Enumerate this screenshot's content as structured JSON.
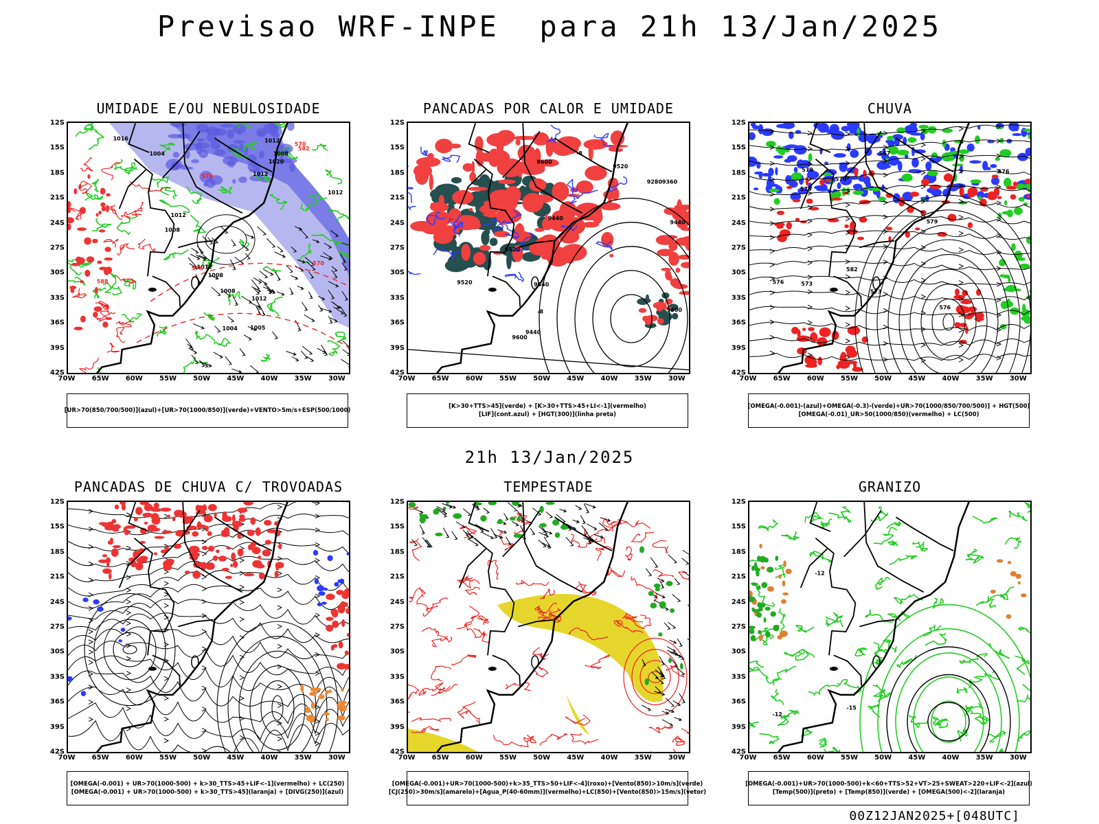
{
  "main_title": "Previsao WRF-INPE  para 21h 13/Jan/2025",
  "mid_title": "21h 13/Jan/2025",
  "footer": "00Z12JAN2025+[048UTC]",
  "lat_ticks": [
    "12S",
    "15S",
    "18S",
    "21S",
    "24S",
    "27S",
    "30S",
    "33S",
    "36S",
    "39S",
    "42S"
  ],
  "lon_ticks": [
    "70W",
    "65W",
    "60W",
    "55W",
    "50W",
    "45W",
    "40W",
    "35W",
    "30W"
  ],
  "panels": [
    {
      "title": "UMIDADE E/OU NEBULOSIDADE",
      "legend": [
        "[UR>70(850/700/500)](azul)+[UR>70(1000/850)](verde)+VENTO>5m/s+ESP(500/1000)"
      ],
      "labels": [
        "1008",
        "1008",
        "1012",
        "1004",
        "1004",
        "1008",
        "1012",
        "1012",
        "1012",
        "1016",
        "1020",
        "1012",
        "1008",
        "570",
        "576",
        "582",
        "588",
        "570",
        "570",
        "1005",
        "1012"
      ]
    },
    {
      "title": "PANCADAS POR CALOR E UMIDADE",
      "legend": [
        "[K>30+TTS>45](verde) + [K>30+TTS>45+LI<-1](vermelho)",
        "[LIF](cont.azul) + [HGT(300)](linha preta)"
      ],
      "labels": [
        "9520",
        "9600",
        "9600",
        "9600",
        "9520",
        "9440",
        "9360",
        "9280",
        "9440",
        "9440",
        "9440",
        "9520",
        "-8",
        "-8"
      ]
    },
    {
      "title": "CHUVA",
      "legend": [
        "[OMEGA(-0.001)-(azul)+OMEGA(-0.3)-(verde)+UR>70(1000/850/700/500)] + HGT(500)",
        "[OMEGA(-0.01)_UR>50(1000/850)(vermelho) + LC(500)"
      ],
      "labels": [
        "582",
        "579",
        "576",
        "573",
        "570",
        "567",
        "576",
        "573",
        "579",
        "576",
        "573"
      ]
    },
    {
      "title": "PANCADAS DE CHUVA C/ TROVOADAS",
      "legend": [
        "[OMEGA(-0.001) + UR>70(1000-500) + k>30_TTS>45+LIF<-1](vermelho) + LC(250)",
        "[OMEGA(-0.001) + UR>70(1000-500) + k>30_TTS>45](laranja) + [DIVG(250)](azul)"
      ],
      "labels": []
    },
    {
      "title": "TEMPESTADE",
      "legend": [
        "[OMEGA(-0.001)+UR>70(1000-500)+k>35_TTS>50+LIF<-4](roxo)+[Vento(850)>10m/s](verde)",
        "[CJ(250)>30m/s](amarelo)+[Agua_P(40-60mm)](vermelho)+LC(850)+[Vento(850)>15m/s](vetor)"
      ],
      "labels": []
    },
    {
      "title": "GRANIZO",
      "legend": [
        "[OMEGA(-0.001)+UR>70(1000-500)+k<60+TTS>52+VT>25+SWEAT>220+LIF<-2](azul)",
        "[Temp(500)](preto) + [Temp(850)](verde) + [OMEGA(500)<-2](laranja)"
      ],
      "labels": [
        "-15",
        "-12",
        "-12"
      ]
    }
  ]
}
